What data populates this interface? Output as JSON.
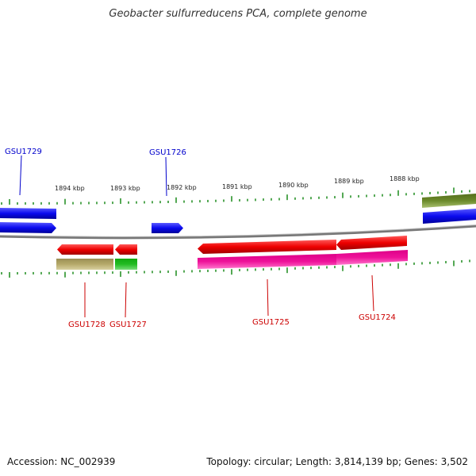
{
  "title": "Geobacter sulfurreducens PCA, complete genome",
  "accession_text": "Accession: NC_002939",
  "summary_text": "Topology: circular; Length: 3,814,139 bp; Genes: 3,502",
  "colors": {
    "forward_label": "#0000cc",
    "reverse_label": "#cc0000",
    "tick": "#1a8a1a",
    "backbone": "#888888",
    "blue_gene": "#0a0aee",
    "red_gene": "#ee0000",
    "olive_feature": "#b5a96a",
    "green_feature": "#22bb22",
    "magenta_feature": "#ee1199",
    "dark_olive_feature": "#6b8a2a"
  },
  "scale_labels": [
    "1894 kbp",
    "1893 kbp",
    "1892 kbp",
    "1891 kbp",
    "1890 kbp",
    "1889 kbp",
    "1888 kbp"
  ],
  "forward_gene_labels": [
    "GSU1729",
    "GSU1726"
  ],
  "reverse_gene_labels": [
    "GSU1728",
    "GSU1727",
    "GSU1725",
    "GSU1724"
  ]
}
